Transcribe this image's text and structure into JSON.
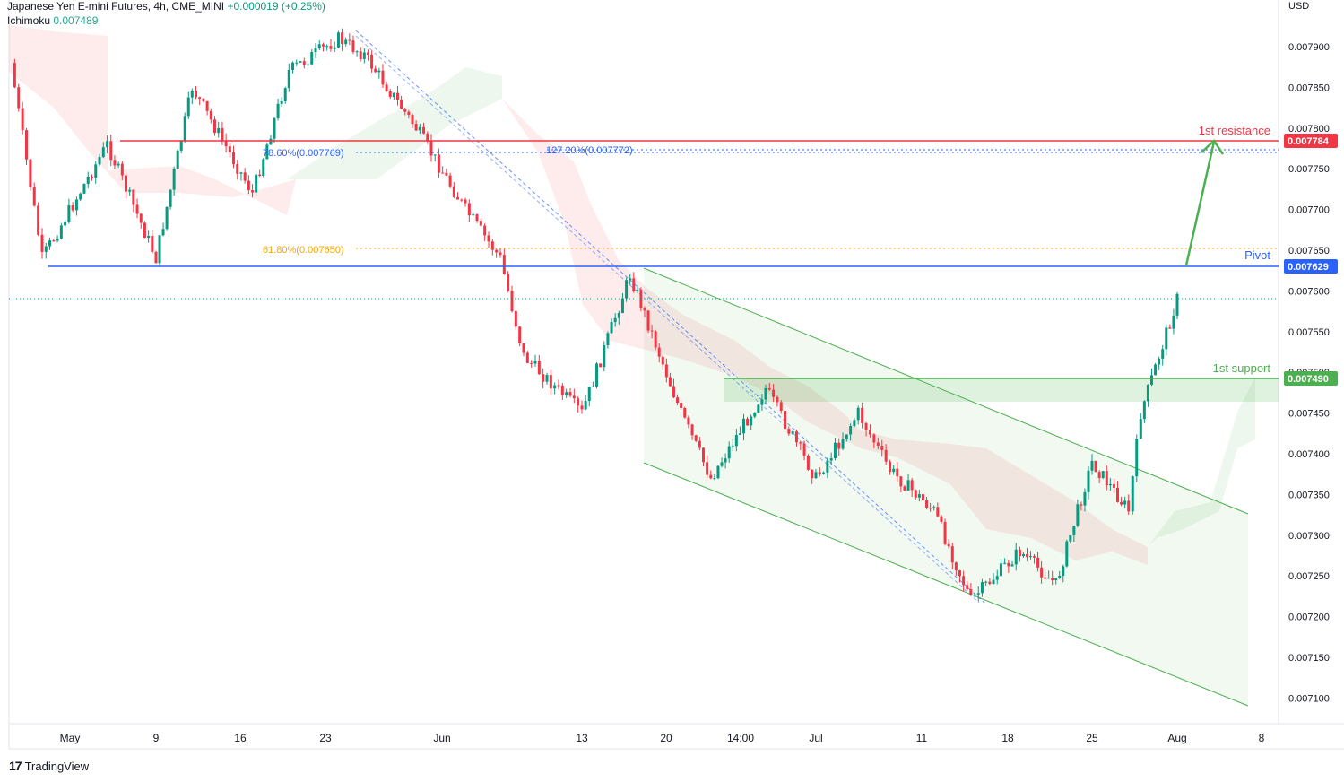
{
  "header": {
    "symbol_line": "Japanese Yen E-mini Futures, 4h, CME_MINI",
    "change": "+0.000019 (+0.25%)",
    "indicator_name": "Ichimoku",
    "indicator_value": "0.007489"
  },
  "axis": {
    "currency": "USD",
    "y_ticks": [
      "0.007900",
      "0.007850",
      "0.007800",
      "0.007750",
      "0.007700",
      "0.007650",
      "0.007600",
      "0.007550",
      "0.007500",
      "0.007450",
      "0.007400",
      "0.007350",
      "0.007300",
      "0.007250",
      "0.007200",
      "0.007150",
      "0.007100"
    ],
    "x_ticks": [
      "May",
      "9",
      "16",
      "23",
      "Jun",
      "13",
      "20",
      "14:00",
      "Jul",
      "11",
      "18",
      "25",
      "Aug",
      "8"
    ]
  },
  "levels": {
    "resistance": {
      "label": "1st resistance",
      "value": "0.007784",
      "color": "#f23645"
    },
    "pivot": {
      "label": "Pivot",
      "value": "0.007629",
      "color": "#2962ff"
    },
    "support": {
      "label": "1st support",
      "value": "0.007490",
      "color": "#4caf50"
    }
  },
  "fib": {
    "f786": "78.60%(0.007769)",
    "f1272": "127.20%(0.007772)",
    "f618": "61.80%(0.007650)"
  },
  "branding": "TradingView",
  "chart_data": {
    "type": "candlestick",
    "title": "Japanese Yen E-mini Futures, 4h, CME_MINI",
    "y_unit": "USD",
    "ylim": [
      0.00707,
      0.00793
    ],
    "last_price": 0.007589,
    "price_path": [
      {
        "x": "Apr 28",
        "y": 0.00788
      },
      {
        "x": "May 2",
        "y": 0.00764
      },
      {
        "x": "May 6",
        "y": 0.00778
      },
      {
        "x": "May 9",
        "y": 0.00764
      },
      {
        "x": "May 12",
        "y": 0.00785
      },
      {
        "x": "May 17",
        "y": 0.00772
      },
      {
        "x": "May 20",
        "y": 0.00787
      },
      {
        "x": "May 24",
        "y": 0.00791
      },
      {
        "x": "May 26",
        "y": 0.00789
      },
      {
        "x": "May 30",
        "y": 0.0078
      },
      {
        "x": "Jun 3",
        "y": 0.0077
      },
      {
        "x": "Jun 6",
        "y": 0.00764
      },
      {
        "x": "Jun 8",
        "y": 0.00752
      },
      {
        "x": "Jun 13",
        "y": 0.00745
      },
      {
        "x": "Jun 17",
        "y": 0.00762
      },
      {
        "x": "Jun 21",
        "y": 0.00745
      },
      {
        "x": "Jun 23",
        "y": 0.00737
      },
      {
        "x": "Jun 27",
        "y": 0.00748
      },
      {
        "x": "Jul 1",
        "y": 0.00737
      },
      {
        "x": "Jul 5",
        "y": 0.00745
      },
      {
        "x": "Jul 8",
        "y": 0.00738
      },
      {
        "x": "Jul 12",
        "y": 0.00733
      },
      {
        "x": "Jul 15",
        "y": 0.00722
      },
      {
        "x": "Jul 19",
        "y": 0.00728
      },
      {
        "x": "Jul 22",
        "y": 0.00724
      },
      {
        "x": "Jul 25",
        "y": 0.00739
      },
      {
        "x": "Jul 28",
        "y": 0.00733
      },
      {
        "x": "Jul 29",
        "y": 0.00745
      },
      {
        "x": "Aug 1",
        "y": 0.00759
      }
    ],
    "horizontal_levels": [
      {
        "name": "1st resistance",
        "value": 0.007784
      },
      {
        "name": "Pivot",
        "value": 0.007629
      },
      {
        "name": "1st support",
        "value": 0.00749
      },
      {
        "name": "61.80%",
        "value": 0.00765
      },
      {
        "name": "78.60%",
        "value": 0.007769
      },
      {
        "name": "127.20%",
        "value": 0.007772
      }
    ],
    "grid": false
  }
}
